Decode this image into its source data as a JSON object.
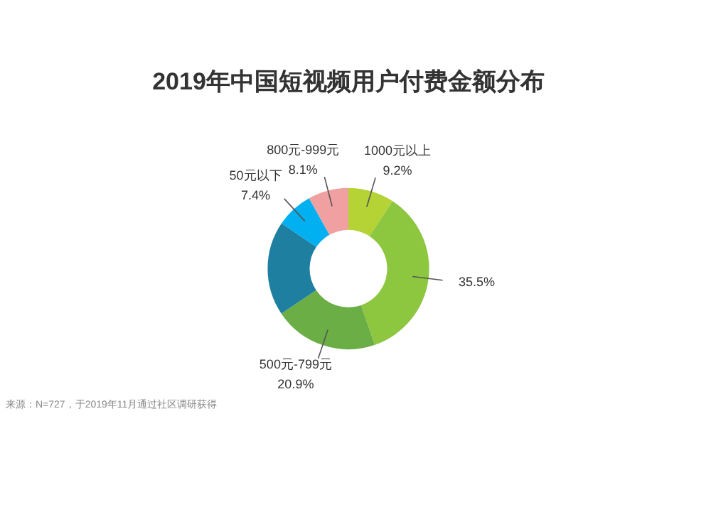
{
  "chart_data": {
    "type": "donut",
    "title": "2019年中国短视频用户付费金额分布",
    "categories": [
      "1000元以上",
      null,
      "500元-799元",
      null,
      "50元以下",
      "800元-999元"
    ],
    "values": [
      9.2,
      35.5,
      20.9,
      18.9,
      7.4,
      8.1
    ],
    "value_labels": [
      "9.2%",
      "35.5%",
      "20.9%",
      null,
      "7.4%",
      "8.1%"
    ],
    "colors": [
      "#b5d334",
      "#8dc63f",
      "#6aae45",
      "#1f7fa0",
      "#00b0f0",
      "#f0a0a0"
    ],
    "legend": false,
    "annotations": [
      "来源：N=727，于2019年11月通过社区调研获得"
    ]
  }
}
